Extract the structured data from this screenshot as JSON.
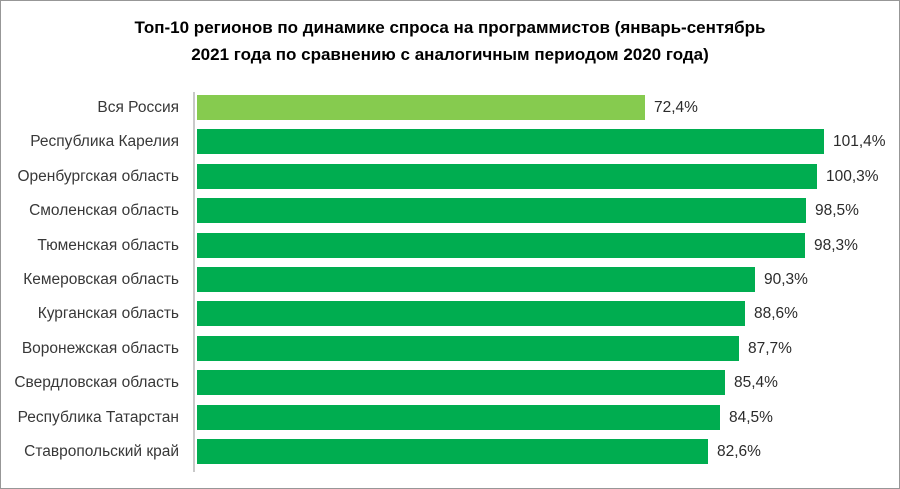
{
  "chart_data": {
    "type": "bar",
    "orientation": "horizontal",
    "title": "Топ-10 регионов по динамике спроса на программистов (январь-сентябрь 2021 года по сравнению с аналогичным периодом 2020 года)",
    "title_lines": [
      "Топ-10 регионов по динамике спроса на программистов (январь-сентябрь",
      "2021 года по сравнению с аналогичным периодом 2020 года)"
    ],
    "categories": [
      "Вся Россия",
      "Республика Карелия",
      "Оренбургская область",
      "Смоленская область",
      "Тюменская область",
      "Кемеровская область",
      "Курганская область",
      "Воронежская область",
      "Свердловская область",
      "Республика Татарстан",
      "Ставропольский край"
    ],
    "values": [
      72.4,
      101.4,
      100.3,
      98.5,
      98.3,
      90.3,
      88.6,
      87.7,
      85.4,
      84.5,
      82.6
    ],
    "value_labels": [
      "72,4%",
      "101,4%",
      "100,3%",
      "98,5%",
      "98,3%",
      "90,3%",
      "88,6%",
      "87,7%",
      "85,4%",
      "84,5%",
      "82,6%"
    ],
    "highlight_index": 0,
    "colors": {
      "bar_default": "#00AD50",
      "bar_highlight": "#86CB4F",
      "axis_line": "#c9c9c9"
    },
    "xlabel": "",
    "ylabel": "",
    "xlim": [
      0,
      110.7
    ],
    "grid": false,
    "legend": false,
    "data_labels": true
  }
}
